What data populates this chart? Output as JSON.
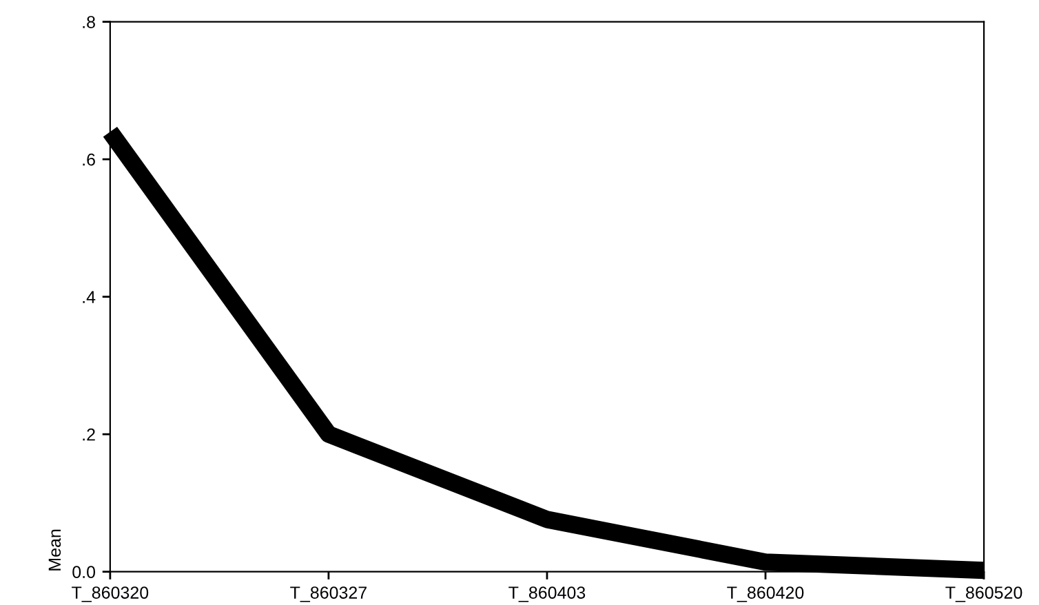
{
  "chart_data": {
    "type": "line",
    "ylabel": "Mean",
    "categories": [
      "T_860320",
      "T_860327",
      "T_860403",
      "T_860420",
      "T_860520"
    ],
    "series": [
      {
        "color": "#000000",
        "values": [
          0.64,
          0.2,
          0.076,
          0.014,
          0.002
        ]
      }
    ],
    "ylim": [
      0,
      0.8
    ],
    "yticks": [
      {
        "value": 0,
        "label": "0.0"
      },
      {
        "value": 0.2,
        "label": ".2"
      },
      {
        "value": 0.4,
        "label": ".4"
      },
      {
        "value": 0.6,
        "label": ".6"
      },
      {
        "value": 0.8,
        "label": ".8"
      }
    ],
    "grid": false,
    "legend": false,
    "marker": "none",
    "line_style": "solid"
  }
}
